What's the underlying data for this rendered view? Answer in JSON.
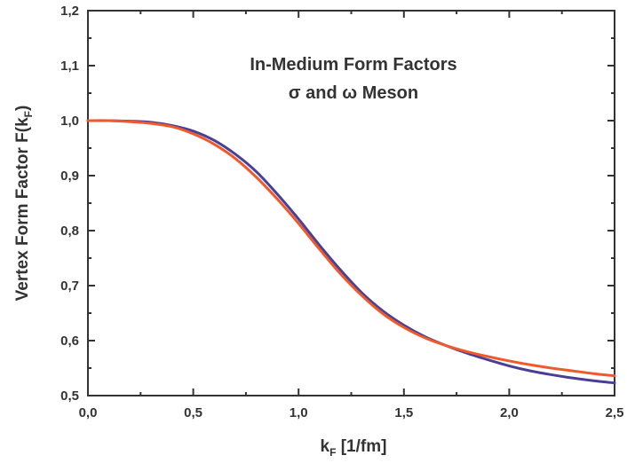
{
  "chart_data": {
    "type": "line",
    "title_lines": [
      "In-Medium Form Factors",
      "σ and ω  Meson"
    ],
    "xlabel": {
      "main": "k",
      "sub": "F",
      "rest": "  [1/fm]"
    },
    "ylabel": {
      "main": "Vertex Form Factor F(k",
      "sub": "F",
      "rest": ")"
    },
    "xlim": [
      0.0,
      2.5
    ],
    "ylim": [
      0.5,
      1.2
    ],
    "x_ticks": [
      {
        "value": 0.0,
        "label": "0,0"
      },
      {
        "value": 0.5,
        "label": "0,5"
      },
      {
        "value": 1.0,
        "label": "1,0"
      },
      {
        "value": 1.5,
        "label": "1,5"
      },
      {
        "value": 2.0,
        "label": "2,0"
      },
      {
        "value": 2.5,
        "label": "2,5"
      }
    ],
    "y_ticks": [
      {
        "value": 0.5,
        "label": "0,5"
      },
      {
        "value": 0.6,
        "label": "0,6"
      },
      {
        "value": 0.7,
        "label": "0,7"
      },
      {
        "value": 0.8,
        "label": "0,8"
      },
      {
        "value": 0.9,
        "label": "0,9"
      },
      {
        "value": 1.0,
        "label": "1,0"
      },
      {
        "value": 1.1,
        "label": "1,1"
      },
      {
        "value": 1.2,
        "label": "1,2"
      }
    ],
    "grid": false,
    "series": [
      {
        "color": "#4a3f96",
        "x": [
          0.0,
          0.1,
          0.2,
          0.3,
          0.4,
          0.5,
          0.6,
          0.7,
          0.8,
          0.9,
          1.0,
          1.1,
          1.2,
          1.3,
          1.4,
          1.5,
          1.6,
          1.7,
          1.8,
          1.9,
          2.0,
          2.1,
          2.2,
          2.3,
          2.4,
          2.5
        ],
        "y": [
          1.0,
          1.0,
          0.999,
          0.997,
          0.991,
          0.981,
          0.964,
          0.939,
          0.907,
          0.866,
          0.821,
          0.773,
          0.728,
          0.687,
          0.654,
          0.628,
          0.607,
          0.591,
          0.577,
          0.565,
          0.554,
          0.545,
          0.538,
          0.532,
          0.527,
          0.523
        ]
      },
      {
        "color": "#ee5a2a",
        "x": [
          0.0,
          0.1,
          0.2,
          0.3,
          0.4,
          0.5,
          0.6,
          0.7,
          0.8,
          0.9,
          1.0,
          1.1,
          1.2,
          1.3,
          1.4,
          1.5,
          1.6,
          1.7,
          1.8,
          1.9,
          2.0,
          2.1,
          2.2,
          2.3,
          2.4,
          2.5
        ],
        "y": [
          1.0,
          1.0,
          0.998,
          0.995,
          0.989,
          0.976,
          0.957,
          0.931,
          0.897,
          0.857,
          0.813,
          0.766,
          0.721,
          0.682,
          0.649,
          0.624,
          0.605,
          0.591,
          0.58,
          0.571,
          0.563,
          0.556,
          0.55,
          0.545,
          0.54,
          0.536
        ]
      }
    ]
  }
}
